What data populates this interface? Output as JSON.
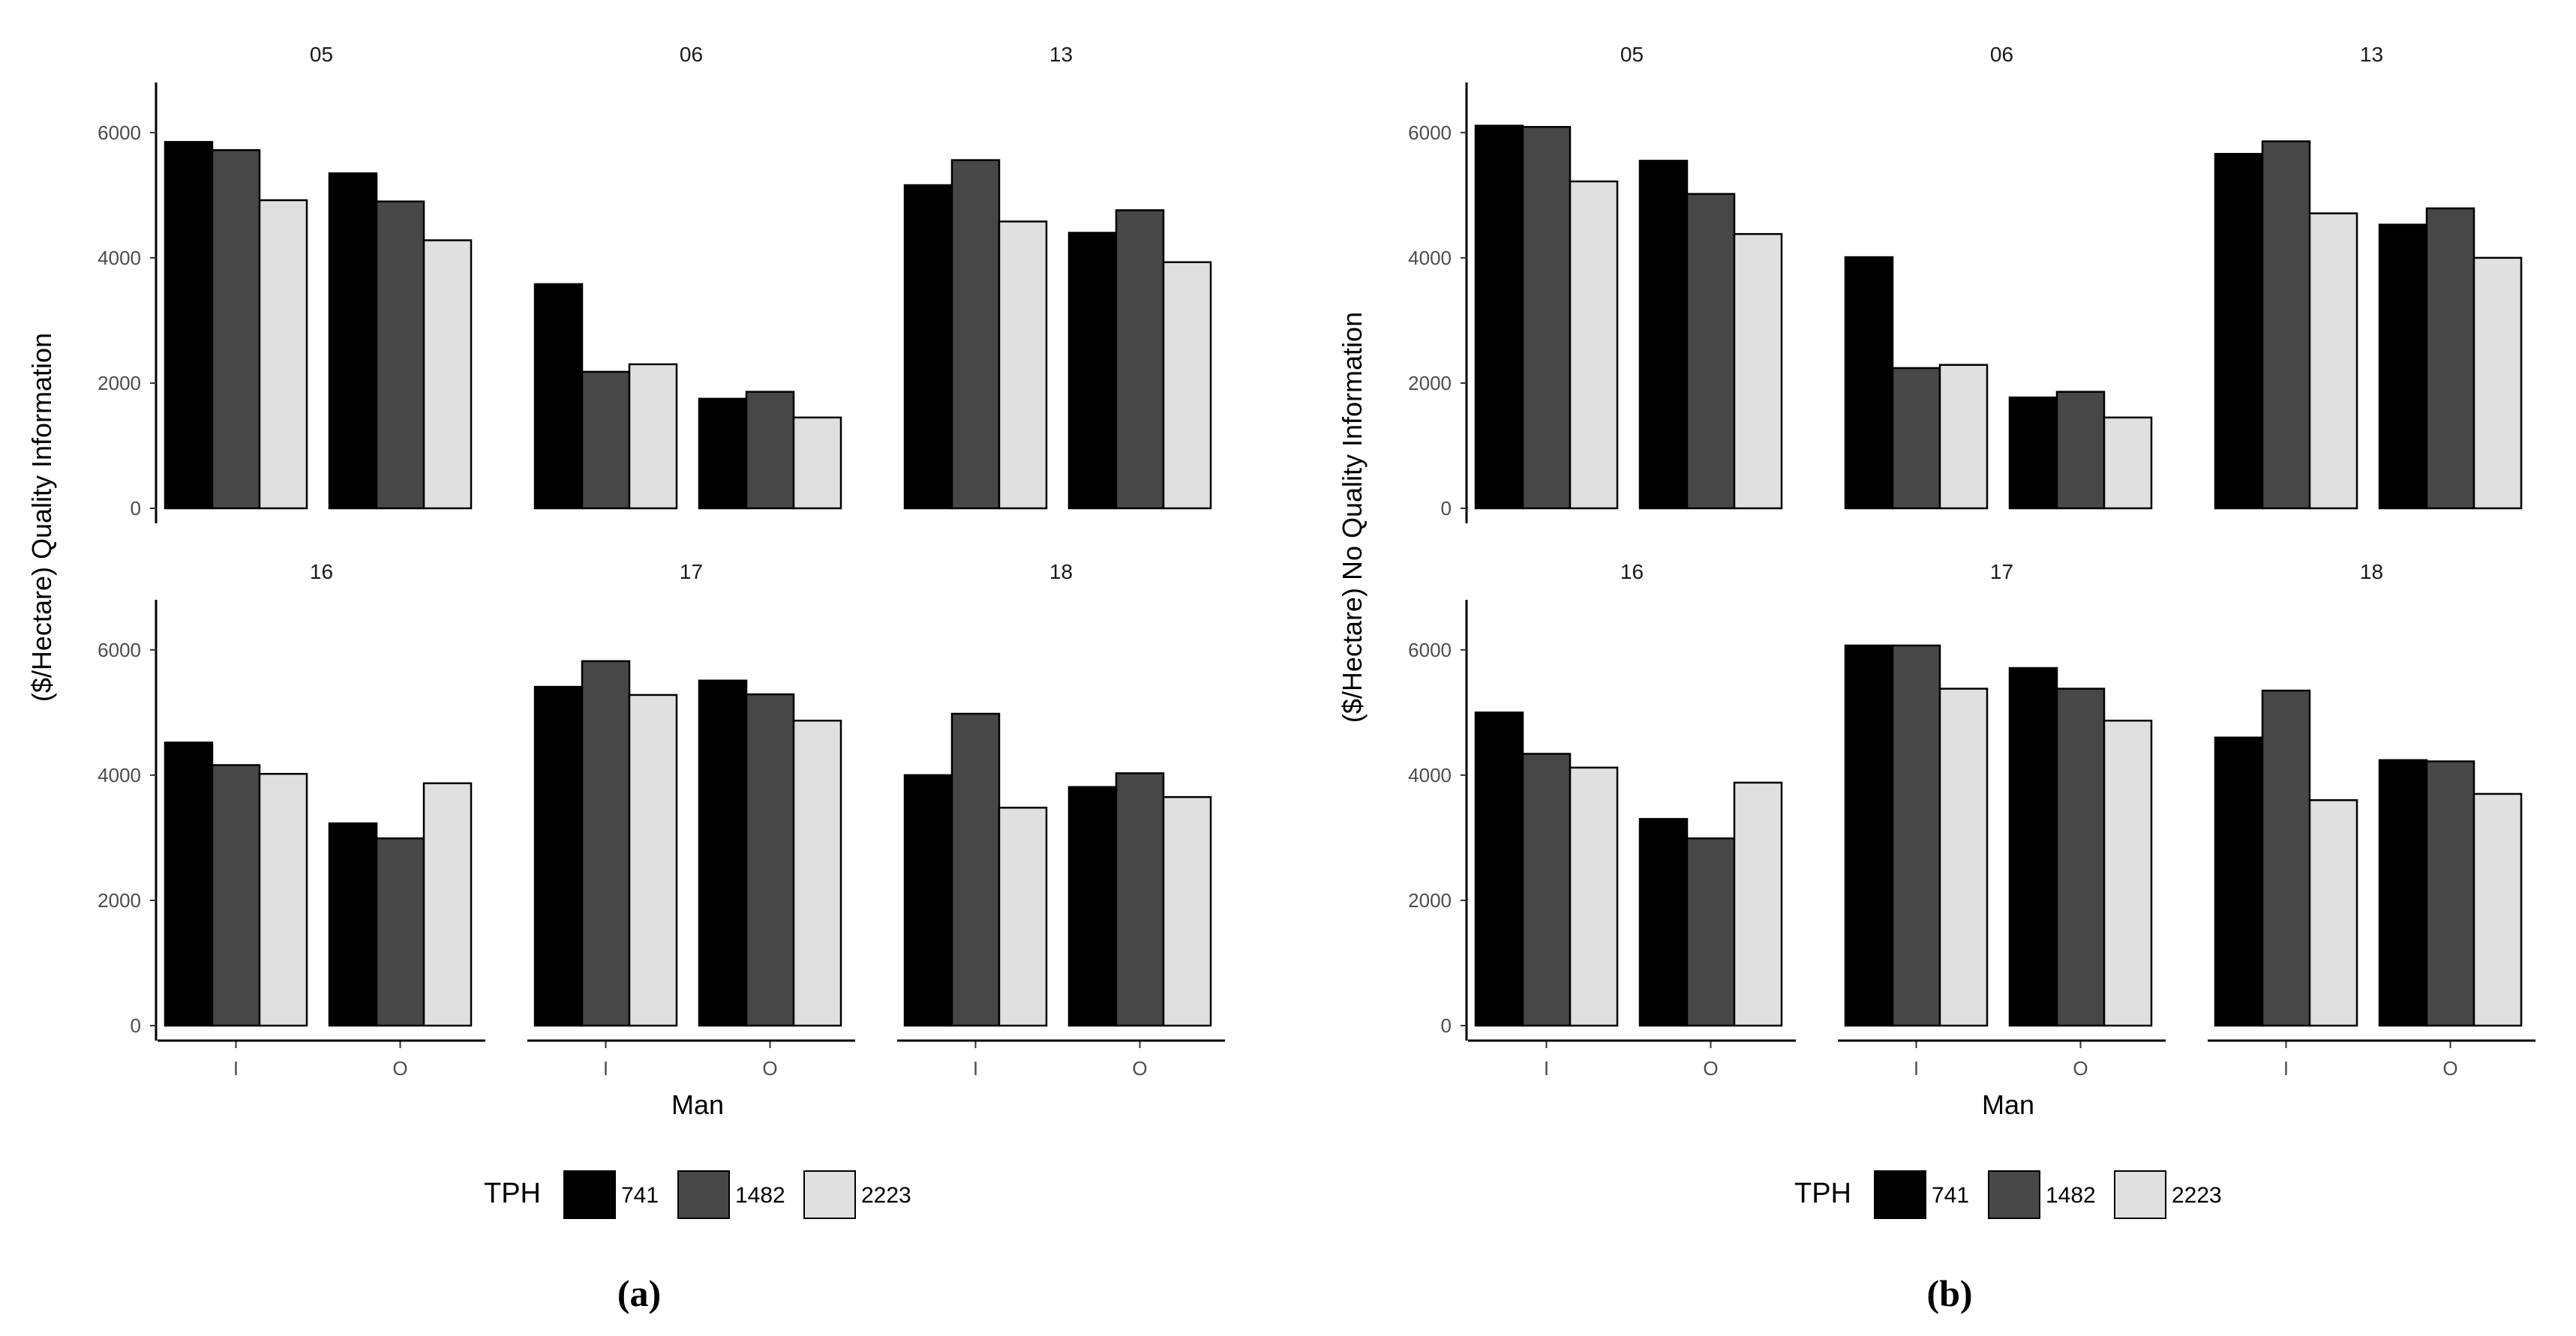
{
  "colors": {
    "741": "#000000",
    "1482": "#474747",
    "2223": "#e0e0e0",
    "outline": "#000000",
    "axis": "#000000"
  },
  "legend": {
    "title": "TPH",
    "entries": [
      "741",
      "1482",
      "2223"
    ]
  },
  "chart_data": [
    {
      "type": "bar",
      "panel_tag": "(a)",
      "ylabel": "($/Hectare) Quality Information",
      "xlabel": "Man",
      "categories": [
        "I",
        "O"
      ],
      "ylim": [
        0,
        6800
      ],
      "yticks": [
        0,
        2000,
        4000,
        6000
      ],
      "series_names": [
        "741",
        "1482",
        "2223"
      ],
      "facets": [
        {
          "label": "05",
          "values": {
            "I": [
              5850,
              5720,
              4920
            ],
            "O": [
              5350,
              4900,
              4280
            ]
          }
        },
        {
          "label": "06",
          "values": {
            "I": [
              3580,
              2180,
              2300
            ],
            "O": [
              1750,
              1860,
              1450
            ]
          }
        },
        {
          "label": "13",
          "values": {
            "I": [
              5160,
              5560,
              4580
            ],
            "O": [
              4400,
              4760,
              3930
            ]
          }
        },
        {
          "label": "16",
          "values": {
            "I": [
              4520,
              4160,
              4020
            ],
            "O": [
              3230,
              2990,
              3870
            ]
          }
        },
        {
          "label": "17",
          "values": {
            "I": [
              5410,
              5820,
              5280
            ],
            "O": [
              5510,
              5290,
              4870
            ]
          }
        },
        {
          "label": "18",
          "values": {
            "I": [
              4000,
              4980,
              3480
            ],
            "O": [
              3810,
              4030,
              3650
            ]
          }
        }
      ]
    },
    {
      "type": "bar",
      "panel_tag": "(b)",
      "ylabel": "($/Hectare) No Quality Information",
      "xlabel": "Man",
      "categories": [
        "I",
        "O"
      ],
      "ylim": [
        0,
        6800
      ],
      "yticks": [
        0,
        2000,
        4000,
        6000
      ],
      "series_names": [
        "741",
        "1482",
        "2223"
      ],
      "facets": [
        {
          "label": "05",
          "values": {
            "I": [
              6110,
              6090,
              5220
            ],
            "O": [
              5550,
              5020,
              4380
            ]
          }
        },
        {
          "label": "06",
          "values": {
            "I": [
              4010,
              2240,
              2290
            ],
            "O": [
              1770,
              1860,
              1450
            ]
          }
        },
        {
          "label": "13",
          "values": {
            "I": [
              5660,
              5860,
              4710
            ],
            "O": [
              4530,
              4790,
              4000
            ]
          }
        },
        {
          "label": "16",
          "values": {
            "I": [
              5000,
              4340,
              4120
            ],
            "O": [
              3300,
              2990,
              3880
            ]
          }
        },
        {
          "label": "17",
          "values": {
            "I": [
              6070,
              6070,
              5380
            ],
            "O": [
              5710,
              5380,
              4870
            ]
          }
        },
        {
          "label": "18",
          "values": {
            "I": [
              4600,
              5350,
              3600
            ],
            "O": [
              4240,
              4220,
              3700
            ]
          }
        }
      ]
    }
  ]
}
